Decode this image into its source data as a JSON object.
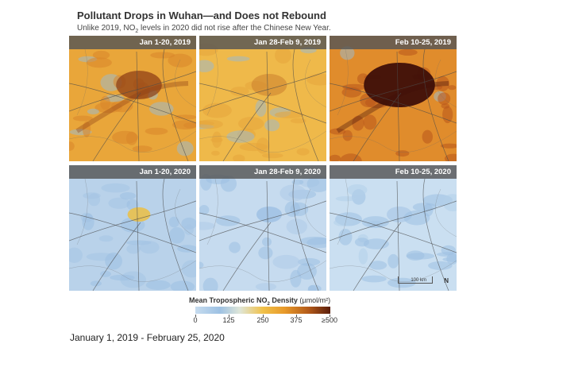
{
  "header": {
    "title": "Pollutant Drops in Wuhan—and Does not Rebound",
    "subtitle_pre": "Unlike 2019, NO",
    "subtitle_sub": "2",
    "subtitle_post": " levels in 2020 did not rise after the Chinese New Year."
  },
  "panels": [
    {
      "label": "Jan 1-20, 2019",
      "theme": "hot-medium"
    },
    {
      "label": "Jan 28-Feb 9, 2019",
      "theme": "warm-light"
    },
    {
      "label": "Feb 10-25, 2019",
      "theme": "hot-strong"
    },
    {
      "label": "Jan 1-20, 2020",
      "theme": "cool-spot"
    },
    {
      "label": "Jan 28-Feb 9, 2020",
      "theme": "cool"
    },
    {
      "label": "Feb 10-25, 2020",
      "theme": "cool-clean"
    }
  ],
  "scale": {
    "text": "100 km",
    "north": "N"
  },
  "legend": {
    "title_pre": "Mean Tropospheric NO",
    "title_sub": "2",
    "title_post": " Density ",
    "unit": "(µmol/m²)",
    "ticks": [
      "0",
      "125",
      "250",
      "375",
      "≥500"
    ],
    "colors": [
      "#c7dcef",
      "#9dc1e3",
      "#f0c14a",
      "#b35a1a",
      "#5a1e0c"
    ]
  },
  "footer": {
    "date_range": "January 1, 2019 - February 25, 2020"
  }
}
